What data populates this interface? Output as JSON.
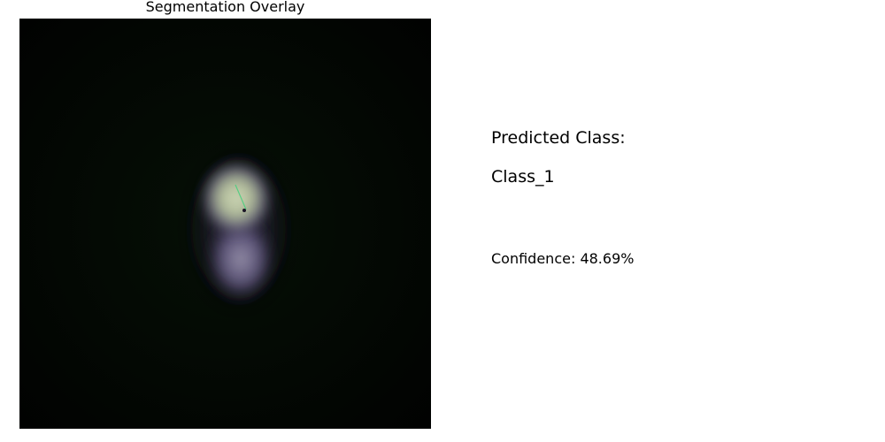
{
  "panel": {
    "title": "Segmentation Overlay"
  },
  "result": {
    "heading": "Predicted Class:",
    "class_name": "Class_1",
    "confidence_text": "Confidence: 48.69%"
  },
  "colors": {
    "background": "#ffffff",
    "image_background": "#020402",
    "cell_glow": "#b7c2a6",
    "cell_tail": "#8a82a2",
    "cell_edge": "#6a5a8c",
    "overlay_line": "#3fd07a",
    "text": "#000000"
  }
}
